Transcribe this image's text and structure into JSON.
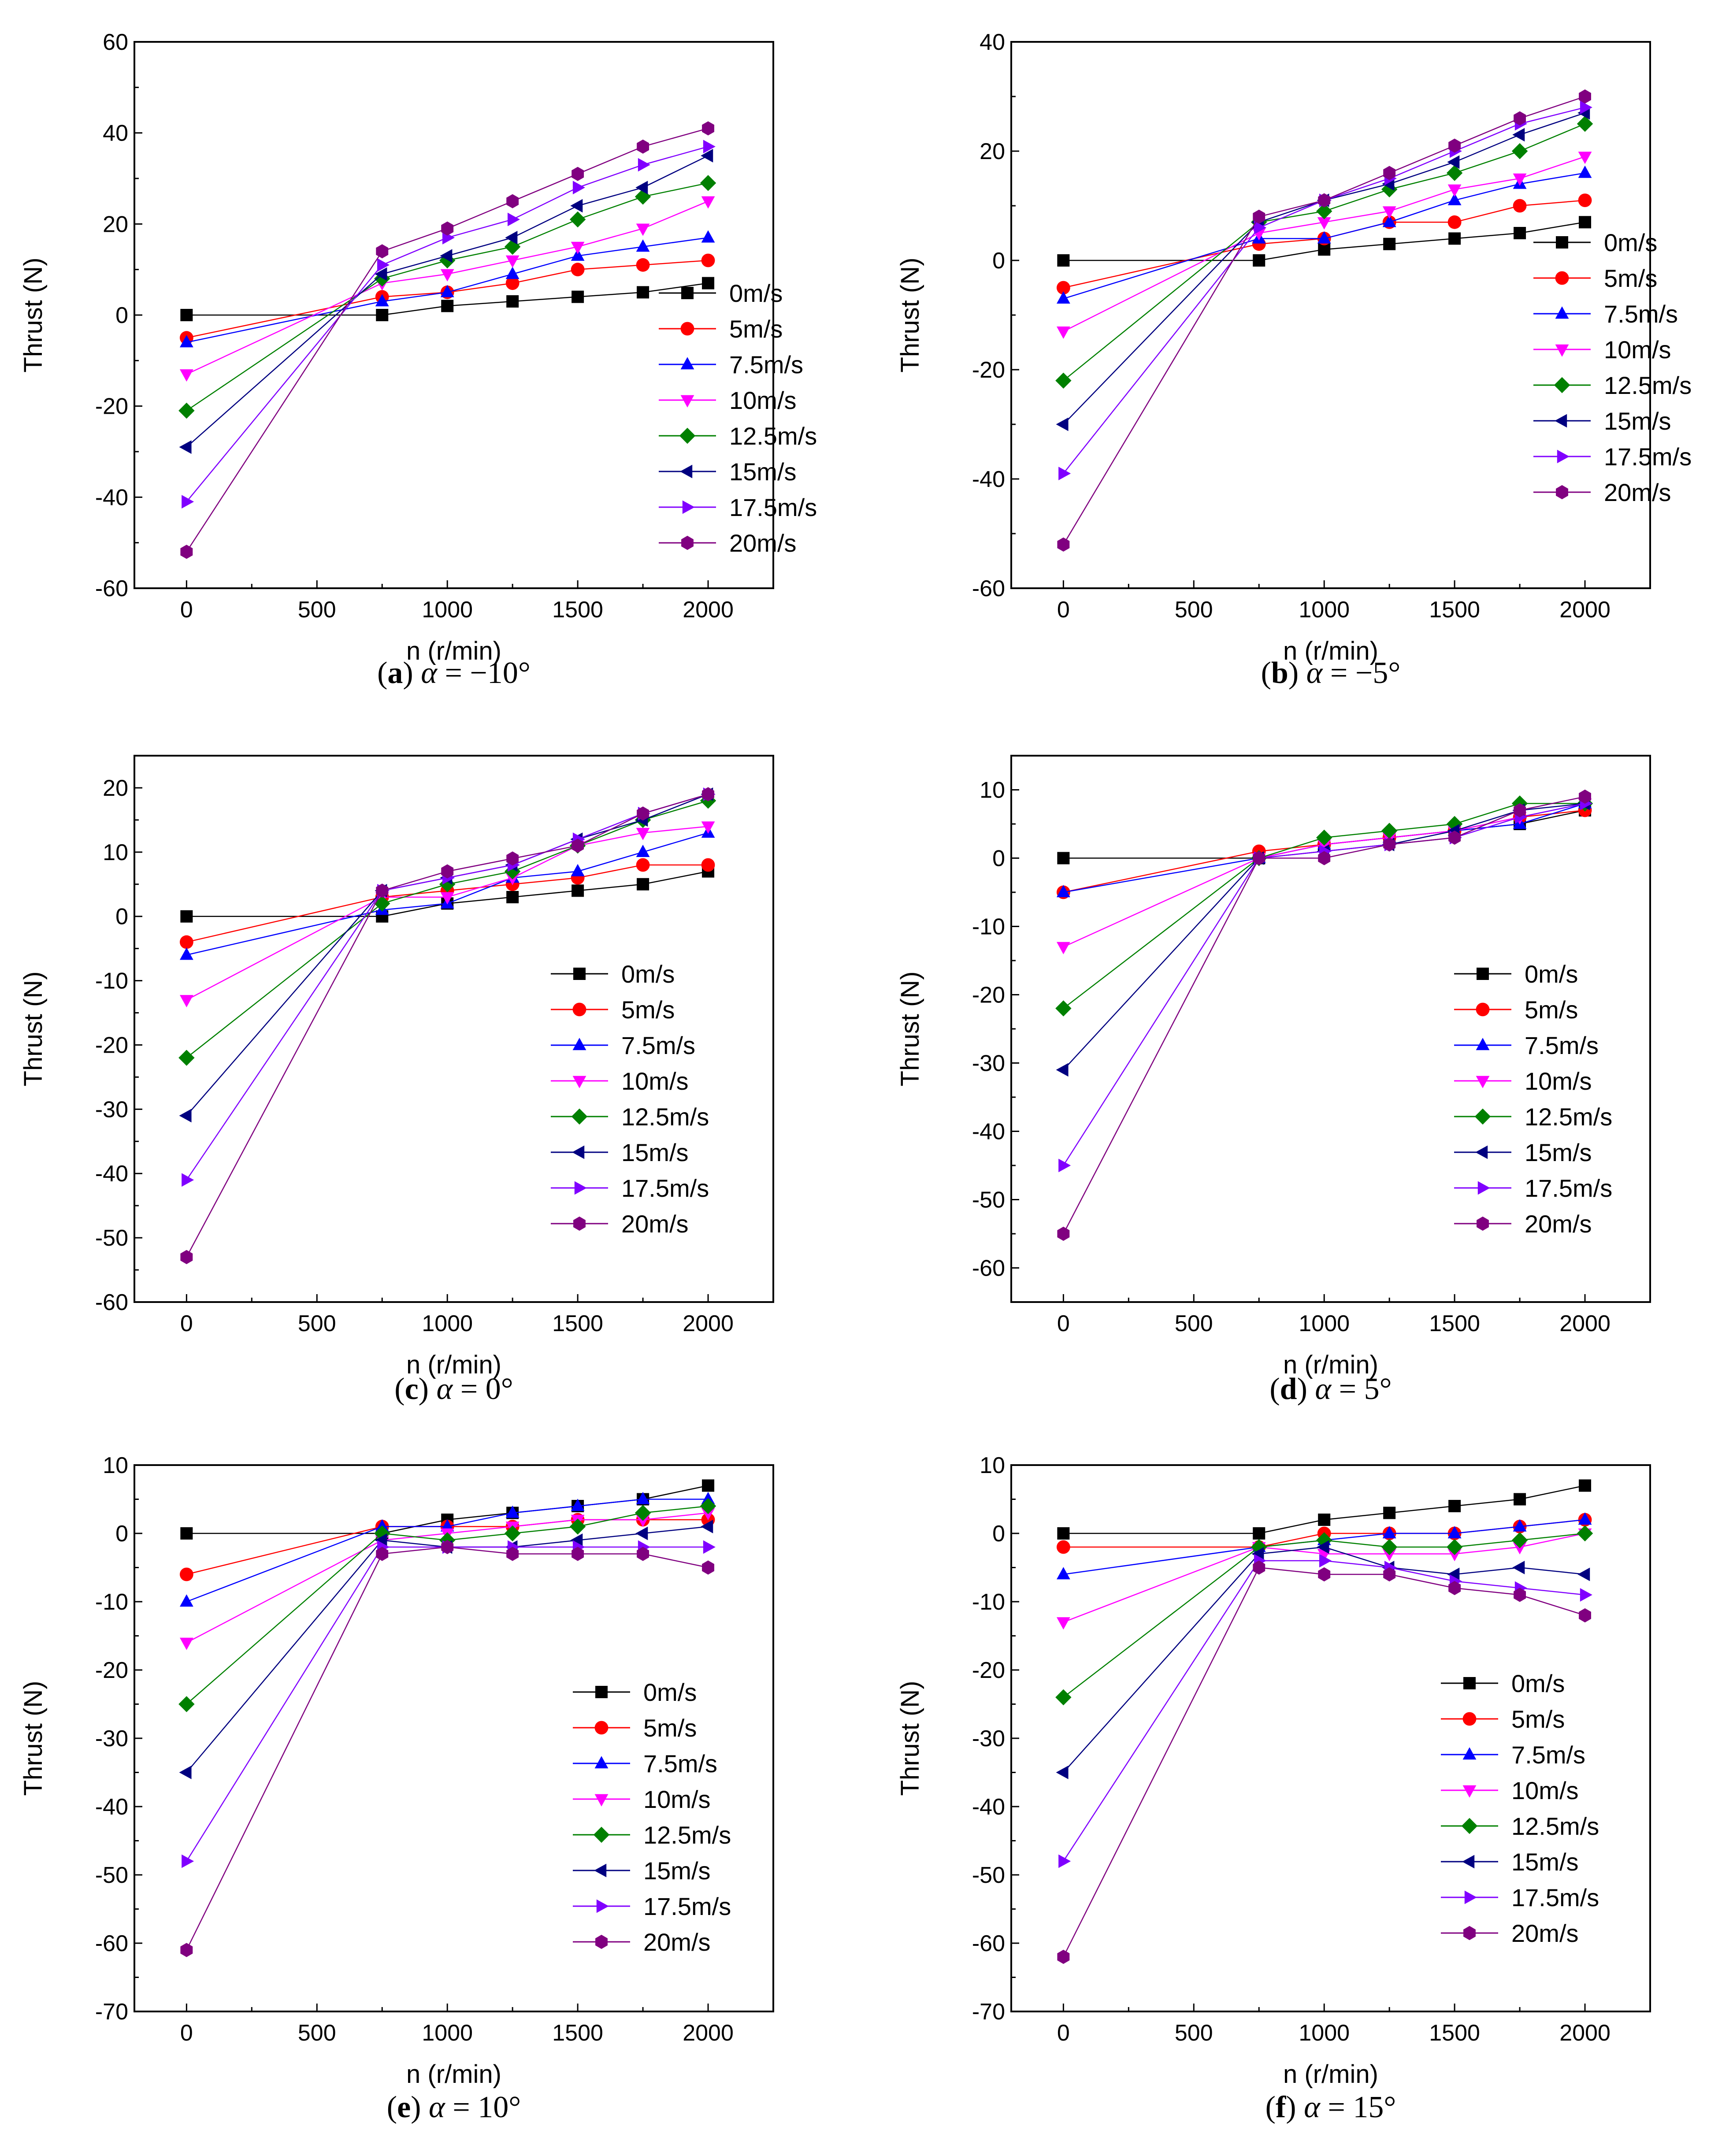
{
  "chart_data": [
    {
      "type": "line",
      "caption_letter": "a",
      "caption_symbol": "α",
      "caption_rest": " = −10°",
      "xlabel": "n (r/min)",
      "ylabel": "Thrust (N)",
      "x": [
        0,
        750,
        1000,
        1250,
        1500,
        1750,
        2000
      ],
      "xlim": [
        -200,
        2250
      ],
      "xticks": [
        0,
        500,
        1000,
        1500,
        2000
      ],
      "ylim": [
        -60,
        60
      ],
      "yticks": [
        -60,
        -40,
        -20,
        0,
        20,
        40,
        60
      ],
      "yminor": 10,
      "legend_position": "bottom-right",
      "series": [
        {
          "name": "0m/s",
          "values": [
            0,
            0,
            2,
            3,
            4,
            5,
            7
          ]
        },
        {
          "name": "5m/s",
          "values": [
            -5,
            4,
            5,
            7,
            10,
            11,
            12
          ]
        },
        {
          "name": "7.5m/s",
          "values": [
            -6,
            3,
            5,
            9,
            13,
            15,
            17
          ]
        },
        {
          "name": "10m/s",
          "values": [
            -13,
            7,
            9,
            12,
            15,
            19,
            25
          ]
        },
        {
          "name": "12.5m/s",
          "values": [
            -21,
            8,
            12,
            15,
            21,
            26,
            29
          ]
        },
        {
          "name": "15m/s",
          "values": [
            -29,
            9,
            13,
            17,
            24,
            28,
            35
          ]
        },
        {
          "name": "17.5m/s",
          "values": [
            -41,
            11,
            17,
            21,
            28,
            33,
            37
          ]
        },
        {
          "name": "20m/s",
          "values": [
            -52,
            14,
            19,
            25,
            31,
            37,
            41
          ]
        }
      ]
    },
    {
      "type": "line",
      "caption_letter": "b",
      "caption_symbol": "α",
      "caption_rest": " = −5°",
      "xlabel": "n (r/min)",
      "ylabel": "Thrust (N)",
      "x": [
        0,
        750,
        1000,
        1250,
        1500,
        1750,
        2000
      ],
      "xlim": [
        -200,
        2250
      ],
      "xticks": [
        0,
        500,
        1000,
        1500,
        2000
      ],
      "ylim": [
        -60,
        40
      ],
      "yticks": [
        -60,
        -40,
        -20,
        0,
        20,
        40
      ],
      "yminor": 10,
      "legend_position": "bottom-right",
      "series": [
        {
          "name": "0m/s",
          "values": [
            0,
            0,
            2,
            3,
            4,
            5,
            7
          ]
        },
        {
          "name": "5m/s",
          "values": [
            -5,
            3,
            4,
            7,
            7,
            10,
            11
          ]
        },
        {
          "name": "7.5m/s",
          "values": [
            -7,
            4,
            4,
            7,
            11,
            14,
            16
          ]
        },
        {
          "name": "10m/s",
          "values": [
            -13,
            5,
            7,
            9,
            13,
            15,
            19
          ]
        },
        {
          "name": "12.5m/s",
          "values": [
            -22,
            7,
            9,
            13,
            16,
            20,
            25
          ]
        },
        {
          "name": "15m/s",
          "values": [
            -30,
            7,
            11,
            14,
            18,
            23,
            27
          ]
        },
        {
          "name": "17.5m/s",
          "values": [
            -39,
            6,
            11,
            15,
            20,
            25,
            28
          ]
        },
        {
          "name": "20m/s",
          "values": [
            -52,
            8,
            11,
            16,
            21,
            26,
            30
          ]
        }
      ]
    },
    {
      "type": "line",
      "caption_letter": "c",
      "caption_symbol": "α",
      "caption_rest": " = 0°",
      "xlabel": "n (r/min)",
      "ylabel": "Thrust (N)",
      "x": [
        0,
        750,
        1000,
        1250,
        1500,
        1750,
        2000
      ],
      "xlim": [
        -200,
        2250
      ],
      "xticks": [
        0,
        500,
        1000,
        1500,
        2000
      ],
      "ylim": [
        -60,
        25
      ],
      "yticks": [
        -60,
        -50,
        -40,
        -30,
        -20,
        -10,
        0,
        10,
        20
      ],
      "yminor": 5,
      "legend_position": "center-right",
      "series": [
        {
          "name": "0m/s",
          "values": [
            0,
            0,
            2,
            3,
            4,
            5,
            7
          ]
        },
        {
          "name": "5m/s",
          "values": [
            -4,
            3,
            4,
            5,
            6,
            8,
            8
          ]
        },
        {
          "name": "7.5m/s",
          "values": [
            -6,
            1,
            2,
            6,
            7,
            10,
            13
          ]
        },
        {
          "name": "10m/s",
          "values": [
            -13,
            3,
            3,
            6,
            11,
            13,
            14
          ]
        },
        {
          "name": "12.5m/s",
          "values": [
            -22,
            2,
            5,
            7,
            11,
            15,
            18
          ]
        },
        {
          "name": "15m/s",
          "values": [
            -31,
            4,
            6,
            8,
            12,
            15,
            19
          ]
        },
        {
          "name": "17.5m/s",
          "values": [
            -41,
            4,
            6,
            8,
            12,
            16,
            19
          ]
        },
        {
          "name": "20m/s",
          "values": [
            -53,
            4,
            7,
            9,
            11,
            16,
            19
          ]
        }
      ]
    },
    {
      "type": "line",
      "caption_letter": "d",
      "caption_symbol": "α",
      "caption_rest": " = 5°",
      "xlabel": "n (r/min)",
      "ylabel": "Thrust (N)",
      "x": [
        0,
        750,
        1000,
        1250,
        1500,
        1750,
        2000
      ],
      "xlim": [
        -200,
        2250
      ],
      "xticks": [
        0,
        500,
        1000,
        1500,
        2000
      ],
      "ylim": [
        -65,
        15
      ],
      "yticks": [
        -60,
        -50,
        -40,
        -30,
        -20,
        -10,
        0,
        10
      ],
      "yminor": 5,
      "legend_position": "center-right",
      "series": [
        {
          "name": "0m/s",
          "values": [
            0,
            0,
            2,
            3,
            4,
            5,
            7
          ]
        },
        {
          "name": "5m/s",
          "values": [
            -5,
            1,
            2,
            3,
            4,
            6,
            7
          ]
        },
        {
          "name": "7.5m/s",
          "values": [
            -5,
            0,
            2,
            3,
            4,
            5,
            8
          ]
        },
        {
          "name": "10m/s",
          "values": [
            -13,
            0,
            2,
            3,
            4,
            6,
            8
          ]
        },
        {
          "name": "12.5m/s",
          "values": [
            -22,
            0,
            3,
            4,
            5,
            8,
            8
          ]
        },
        {
          "name": "15m/s",
          "values": [
            -31,
            0,
            1,
            2,
            4,
            7,
            8
          ]
        },
        {
          "name": "17.5m/s",
          "values": [
            -45,
            0,
            1,
            2,
            3,
            6,
            8
          ]
        },
        {
          "name": "20m/s",
          "values": [
            -55,
            0,
            0,
            2,
            3,
            7,
            9
          ]
        }
      ]
    },
    {
      "type": "line",
      "caption_letter": "e",
      "caption_symbol": "α",
      "caption_rest": " = 10°",
      "xlabel": "n (r/min)",
      "ylabel": "Thrust (N)",
      "x": [
        0,
        750,
        1000,
        1250,
        1500,
        1750,
        2000
      ],
      "xlim": [
        -200,
        2250
      ],
      "xticks": [
        0,
        500,
        1000,
        1500,
        2000
      ],
      "ylim": [
        -70,
        10
      ],
      "yticks": [
        -70,
        -60,
        -50,
        -40,
        -30,
        -20,
        -10,
        0,
        10
      ],
      "yminor": 5,
      "legend_position": "center-right",
      "series": [
        {
          "name": "0m/s",
          "values": [
            0,
            0,
            2,
            3,
            4,
            5,
            7
          ]
        },
        {
          "name": "5m/s",
          "values": [
            -6,
            1,
            1,
            1,
            2,
            2,
            2
          ]
        },
        {
          "name": "7.5m/s",
          "values": [
            -10,
            1,
            1,
            3,
            4,
            5,
            5
          ]
        },
        {
          "name": "10m/s",
          "values": [
            -16,
            -1,
            0,
            1,
            2,
            2,
            3
          ]
        },
        {
          "name": "12.5m/s",
          "values": [
            -25,
            0,
            -1,
            0,
            1,
            3,
            4
          ]
        },
        {
          "name": "15m/s",
          "values": [
            -35,
            -1,
            -2,
            -2,
            -1,
            0,
            1
          ]
        },
        {
          "name": "17.5m/s",
          "values": [
            -48,
            -2,
            -2,
            -2,
            -2,
            -2,
            -2
          ]
        },
        {
          "name": "20m/s",
          "values": [
            -61,
            -3,
            -2,
            -3,
            -3,
            -3,
            -5
          ]
        }
      ]
    },
    {
      "type": "line",
      "caption_letter": "f",
      "caption_symbol": "α",
      "caption_rest": " = 15°",
      "xlabel": "n (r/min)",
      "ylabel": "Thrust (N)",
      "x": [
        0,
        750,
        1000,
        1250,
        1500,
        1750,
        2000
      ],
      "xlim": [
        -200,
        2250
      ],
      "xticks": [
        0,
        500,
        1000,
        1500,
        2000
      ],
      "ylim": [
        -70,
        10
      ],
      "yticks": [
        -70,
        -60,
        -50,
        -40,
        -30,
        -20,
        -10,
        0,
        10
      ],
      "yminor": 5,
      "legend_position": "center-right",
      "series": [
        {
          "name": "0m/s",
          "values": [
            0,
            0,
            2,
            3,
            4,
            5,
            7
          ]
        },
        {
          "name": "5m/s",
          "values": [
            -2,
            -2,
            0,
            0,
            0,
            1,
            2
          ]
        },
        {
          "name": "7.5m/s",
          "values": [
            -6,
            -2,
            -1,
            0,
            0,
            1,
            2
          ]
        },
        {
          "name": "10m/s",
          "values": [
            -13,
            -2,
            -3,
            -3,
            -3,
            -2,
            0
          ]
        },
        {
          "name": "12.5m/s",
          "values": [
            -24,
            -2,
            -1,
            -2,
            -2,
            -1,
            0
          ]
        },
        {
          "name": "15m/s",
          "values": [
            -35,
            -3,
            -2,
            -5,
            -6,
            -5,
            -6
          ]
        },
        {
          "name": "17.5m/s",
          "values": [
            -48,
            -4,
            -4,
            -5,
            -7,
            -8,
            -9
          ]
        },
        {
          "name": "20m/s",
          "values": [
            -62,
            -5,
            -6,
            -6,
            -8,
            -9,
            -12
          ]
        }
      ]
    }
  ],
  "series_style": [
    {
      "color": "#000000",
      "marker": "square"
    },
    {
      "color": "#ff0000",
      "marker": "circle"
    },
    {
      "color": "#0000ff",
      "marker": "triangle-up"
    },
    {
      "color": "#ff00ff",
      "marker": "triangle-down"
    },
    {
      "color": "#008000",
      "marker": "diamond"
    },
    {
      "color": "#000080",
      "marker": "triangle-left"
    },
    {
      "color": "#8000ff",
      "marker": "triangle-right"
    },
    {
      "color": "#800080",
      "marker": "hexagon"
    }
  ]
}
